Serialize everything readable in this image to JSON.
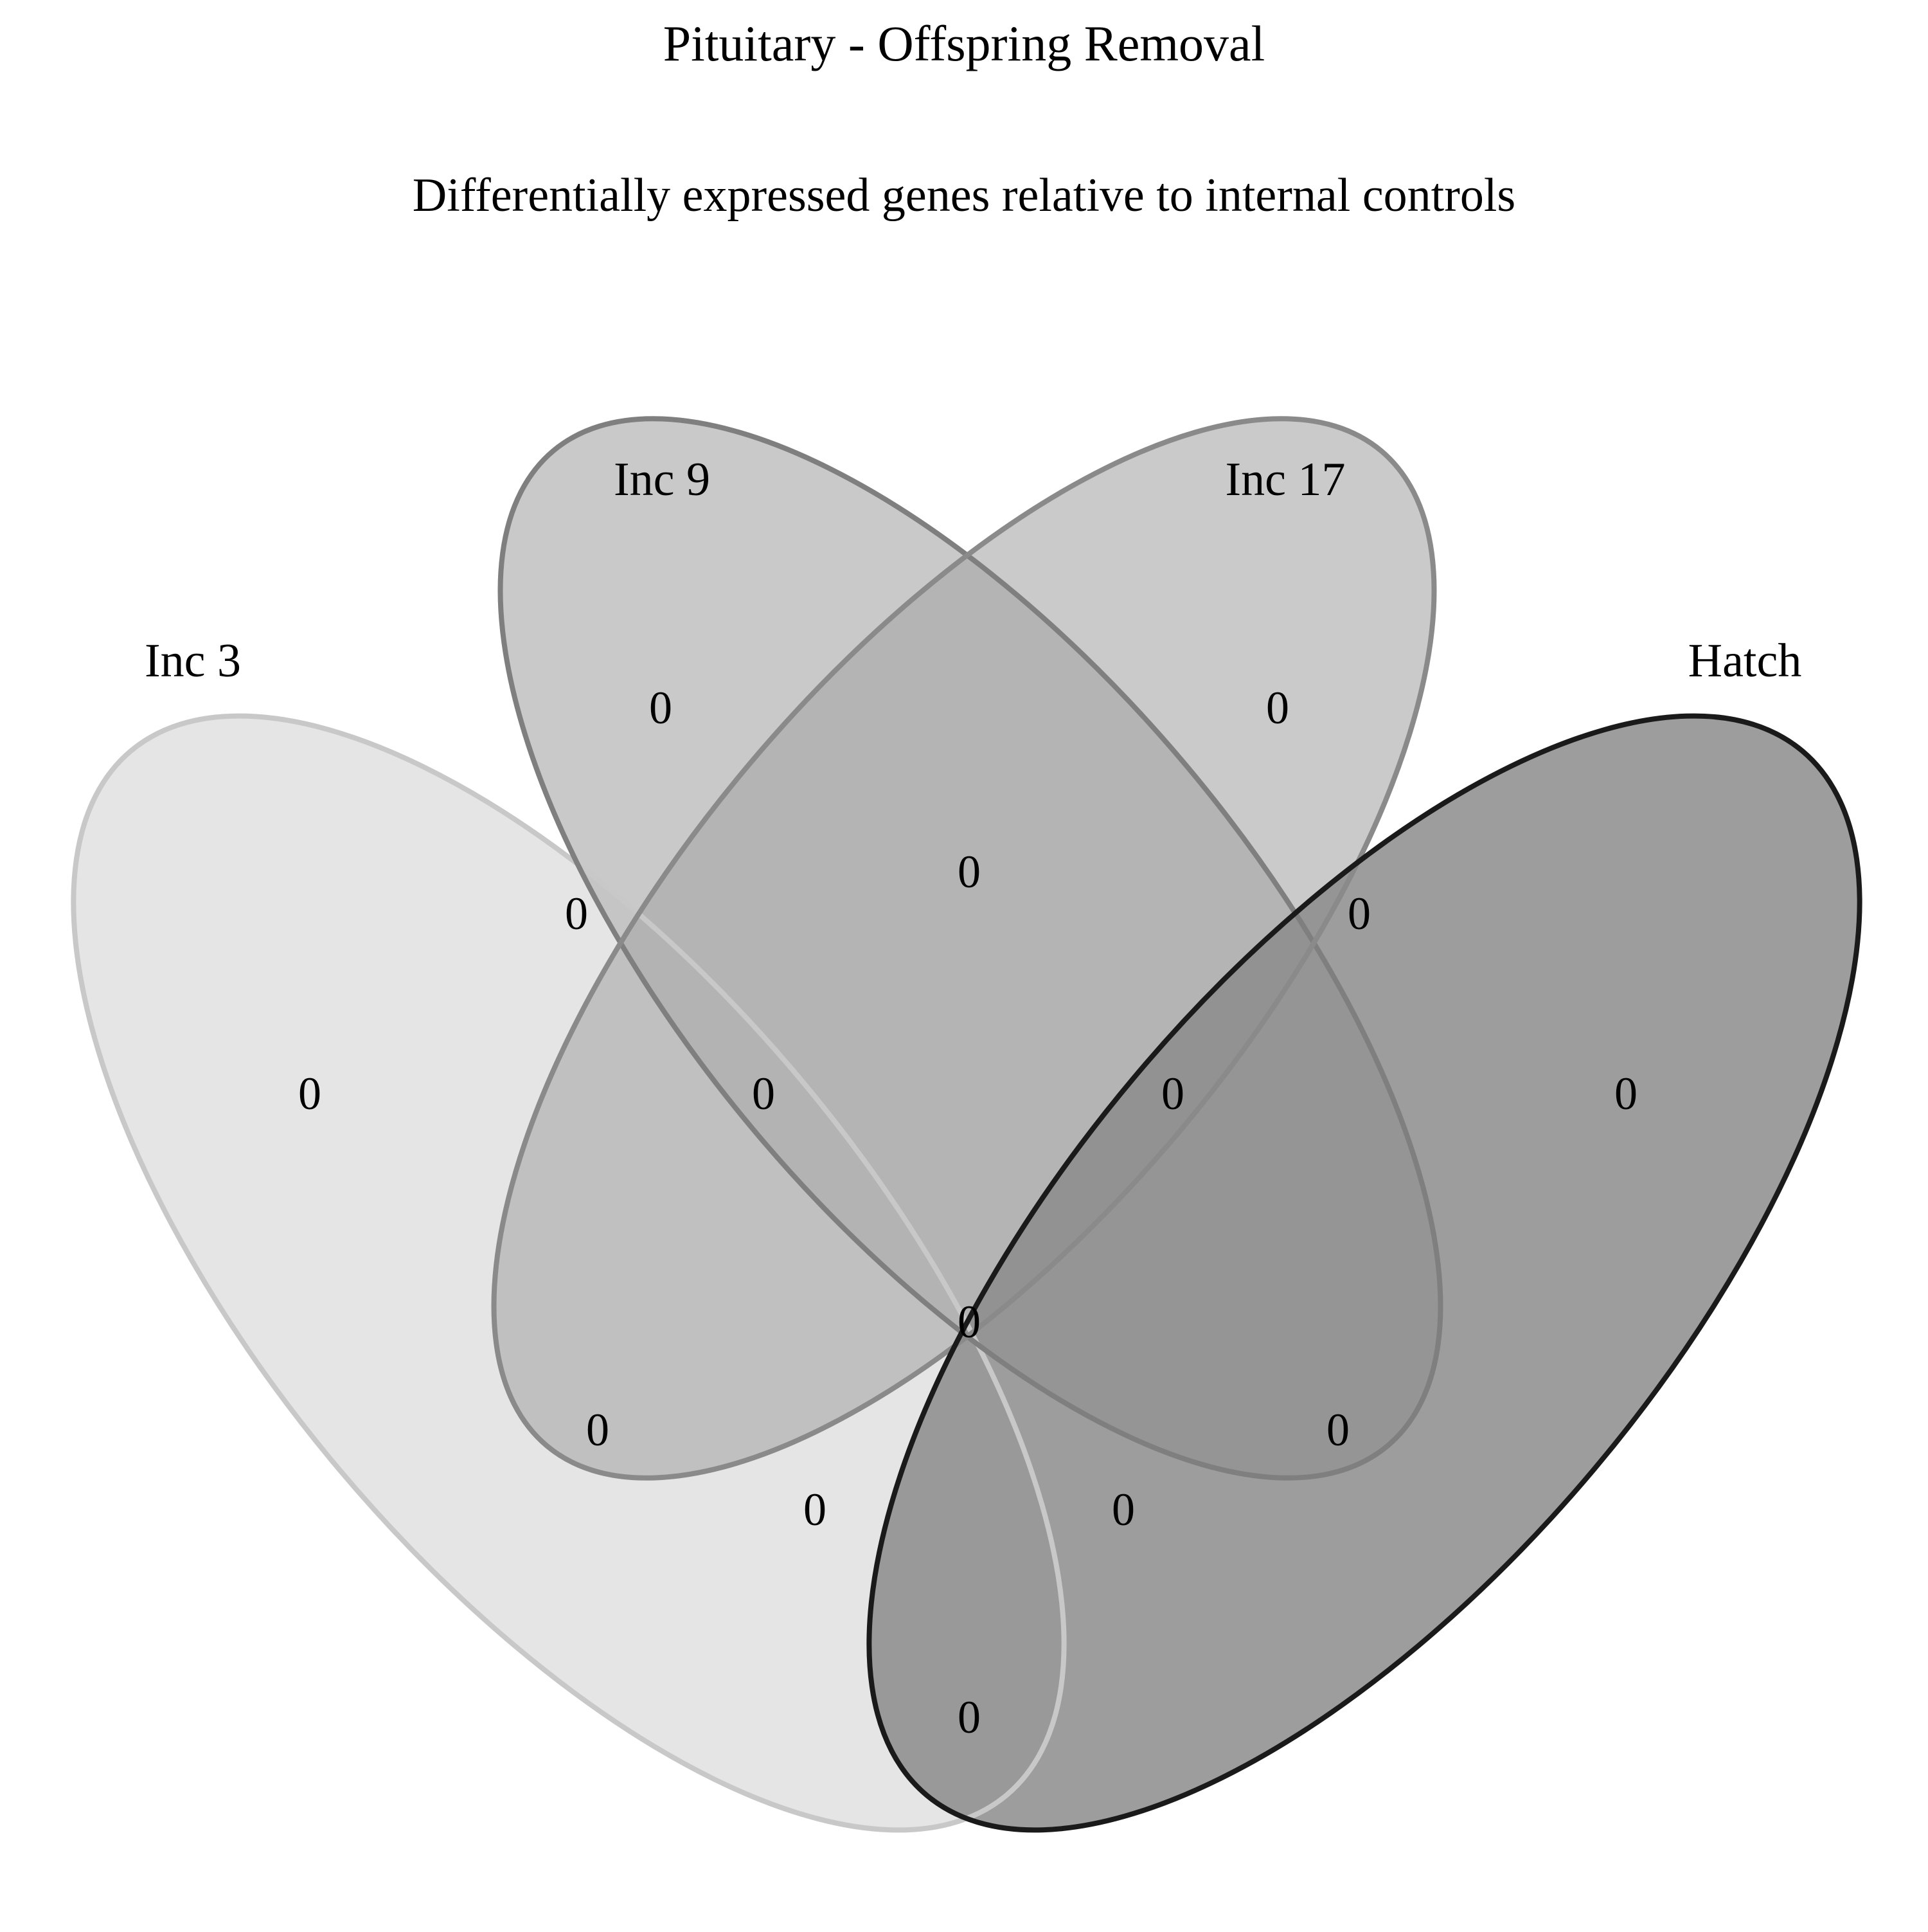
{
  "title": "Pituitary - Offspring Removal",
  "subtitle": "Differentially expressed genes relative to internal controls",
  "sets": [
    {
      "id": "inc3",
      "label": "Inc 3",
      "fill": "#e1e1e1",
      "stroke": "#c8c8c8"
    },
    {
      "id": "inc9",
      "label": "Inc 9",
      "fill": "#bfbfbf",
      "stroke": "#7f7f7f"
    },
    {
      "id": "inc17",
      "label": "Inc 17",
      "fill": "#a6a6a6",
      "stroke": "#8a8a8a"
    },
    {
      "id": "hatch",
      "label": "Hatch",
      "fill": "#8c8c8c",
      "stroke": "#1a1a1a"
    }
  ],
  "regions": [
    {
      "sets": [
        "Inc 3"
      ],
      "count": "0"
    },
    {
      "sets": [
        "Inc 9"
      ],
      "count": "0"
    },
    {
      "sets": [
        "Inc 17"
      ],
      "count": "0"
    },
    {
      "sets": [
        "Hatch"
      ],
      "count": "0"
    },
    {
      "sets": [
        "Inc 3",
        "Inc 9"
      ],
      "count": "0"
    },
    {
      "sets": [
        "Inc 9",
        "Inc 17"
      ],
      "count": "0"
    },
    {
      "sets": [
        "Inc 17",
        "Hatch"
      ],
      "count": "0"
    },
    {
      "sets": [
        "Inc 3",
        "Inc 9",
        "Inc 17"
      ],
      "count": "0"
    },
    {
      "sets": [
        "Inc 9",
        "Inc 17",
        "Hatch"
      ],
      "count": "0"
    },
    {
      "sets": [
        "Inc 3",
        "Inc 17"
      ],
      "count": "0"
    },
    {
      "sets": [
        "Inc 9",
        "Hatch"
      ],
      "count": "0"
    },
    {
      "sets": [
        "Inc 3",
        "Inc 9",
        "Inc 17",
        "Hatch"
      ],
      "count": "0"
    },
    {
      "sets": [
        "Inc 3",
        "Inc 17",
        "Hatch"
      ],
      "count": "0"
    },
    {
      "sets": [
        "Inc 3",
        "Inc 9",
        "Hatch"
      ],
      "count": "0"
    },
    {
      "sets": [
        "Inc 3",
        "Hatch"
      ],
      "count": "0"
    }
  ]
}
